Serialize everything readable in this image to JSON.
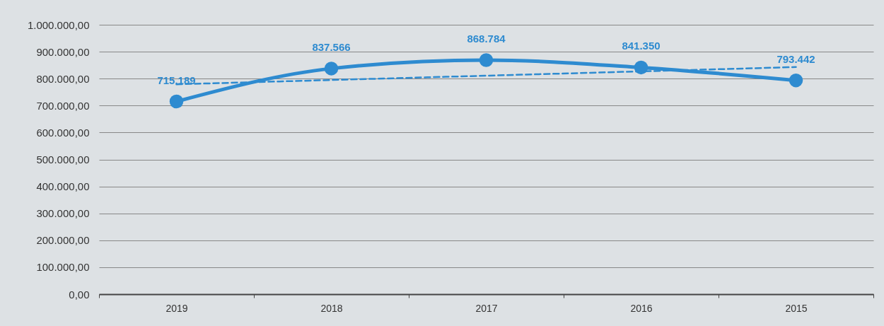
{
  "chart_data": {
    "type": "line",
    "categories": [
      "2019",
      "2018",
      "2017",
      "2016",
      "2015"
    ],
    "series": [
      {
        "color": "#2e8bd0",
        "marker": "circle",
        "line_style": "solid",
        "values": [
          715189,
          837566,
          868784,
          841350,
          793442
        ],
        "value_labels": [
          "715.189",
          "837.566",
          "868.784",
          "841.350",
          "793.442"
        ]
      },
      {
        "color": "#2e8bd0",
        "marker": "none",
        "line_style": "dashed",
        "values": [
          779000,
          795000,
          811000,
          827000,
          843000
        ]
      }
    ],
    "ylim": [
      0,
      1000000
    ],
    "yticks": [
      {
        "value": 0,
        "label": "0,00"
      },
      {
        "value": 100000,
        "label": "100.000,00"
      },
      {
        "value": 200000,
        "label": "200.000,00"
      },
      {
        "value": 300000,
        "label": "300.000,00"
      },
      {
        "value": 400000,
        "label": "400.000,00"
      },
      {
        "value": 500000,
        "label": "500.000,00"
      },
      {
        "value": 600000,
        "label": "600.000,00"
      },
      {
        "value": 700000,
        "label": "700.000,00"
      },
      {
        "value": 800000,
        "label": "800.000,00"
      },
      {
        "value": 900000,
        "label": "900.000,00"
      },
      {
        "value": 1000000,
        "label": "1.000.000,00"
      }
    ],
    "grid": "y"
  }
}
